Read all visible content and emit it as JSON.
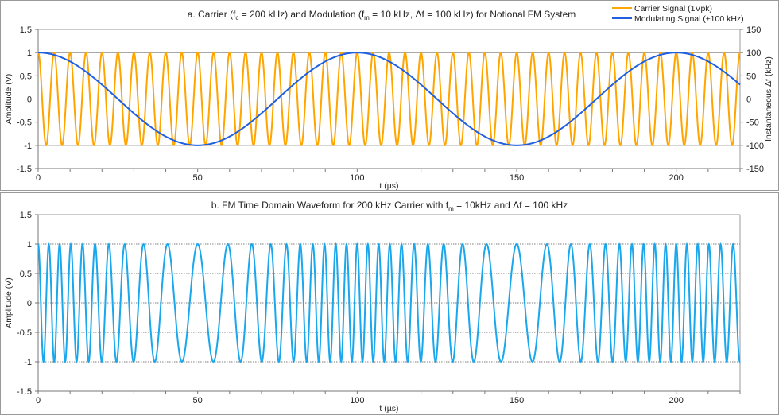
{
  "chart_data": [
    {
      "type": "line",
      "panel": "a",
      "title_parts": [
        "a.  Carrier (f",
        "c",
        " = 200 kHz) and Modulation (f",
        "m",
        " = 10 kHz, Δf = 100 kHz) for Notional FM System"
      ],
      "xlabel": "t (µs)",
      "ylabel": "Amplitude (V)",
      "y2label": "Instantaneous Δf (kHz)",
      "xlim": [
        0,
        220
      ],
      "ylim": [
        -1.5,
        1.5
      ],
      "y2lim": [
        -150,
        150
      ],
      "xticks": [
        "0",
        "50",
        "100",
        "150",
        "200"
      ],
      "yticks": [
        "-1.5",
        "-1",
        "-0.5",
        "0",
        "0.5",
        "1",
        "1.5"
      ],
      "y2ticks": [
        "-150",
        "-100",
        "-50",
        "0",
        "50",
        "100",
        "150"
      ],
      "gridlines_y": [
        -1,
        1
      ],
      "legend_position": "top-right",
      "series": [
        {
          "name": "Carrier Signal (1Vpk)",
          "color": "#FFA500",
          "axis": "left",
          "function": "cos",
          "amplitude_v": 1,
          "frequency_khz": 200
        },
        {
          "name": "Modulating Signal (±100 kHz)",
          "color": "#1F5FE0",
          "axis": "right",
          "function": "cos",
          "amplitude_khz": 100,
          "frequency_khz": 10
        }
      ]
    },
    {
      "type": "line",
      "panel": "b",
      "title_parts": [
        "b.  FM Time Domain Waveform for 200 kHz Carrier with f",
        "m",
        " = 10kHz and Δf = 100 kHz"
      ],
      "xlabel": "t (µs)",
      "ylabel": "Amplitude (V)",
      "xlim": [
        0,
        220
      ],
      "ylim": [
        -1.5,
        1.5
      ],
      "xticks": [
        "0",
        "50",
        "100",
        "150",
        "200"
      ],
      "yticks": [
        "-1.5",
        "-1",
        "-0.5",
        "0",
        "0.5",
        "1",
        "1.5"
      ],
      "gridlines_y": [
        -1,
        -0.5,
        0,
        0.5,
        1
      ],
      "series": [
        {
          "color": "#1AA7EC",
          "function": "fm_cos",
          "amplitude_v": 1,
          "carrier_khz": 200,
          "modulation_khz": 10,
          "deviation_khz": 100
        }
      ]
    }
  ]
}
